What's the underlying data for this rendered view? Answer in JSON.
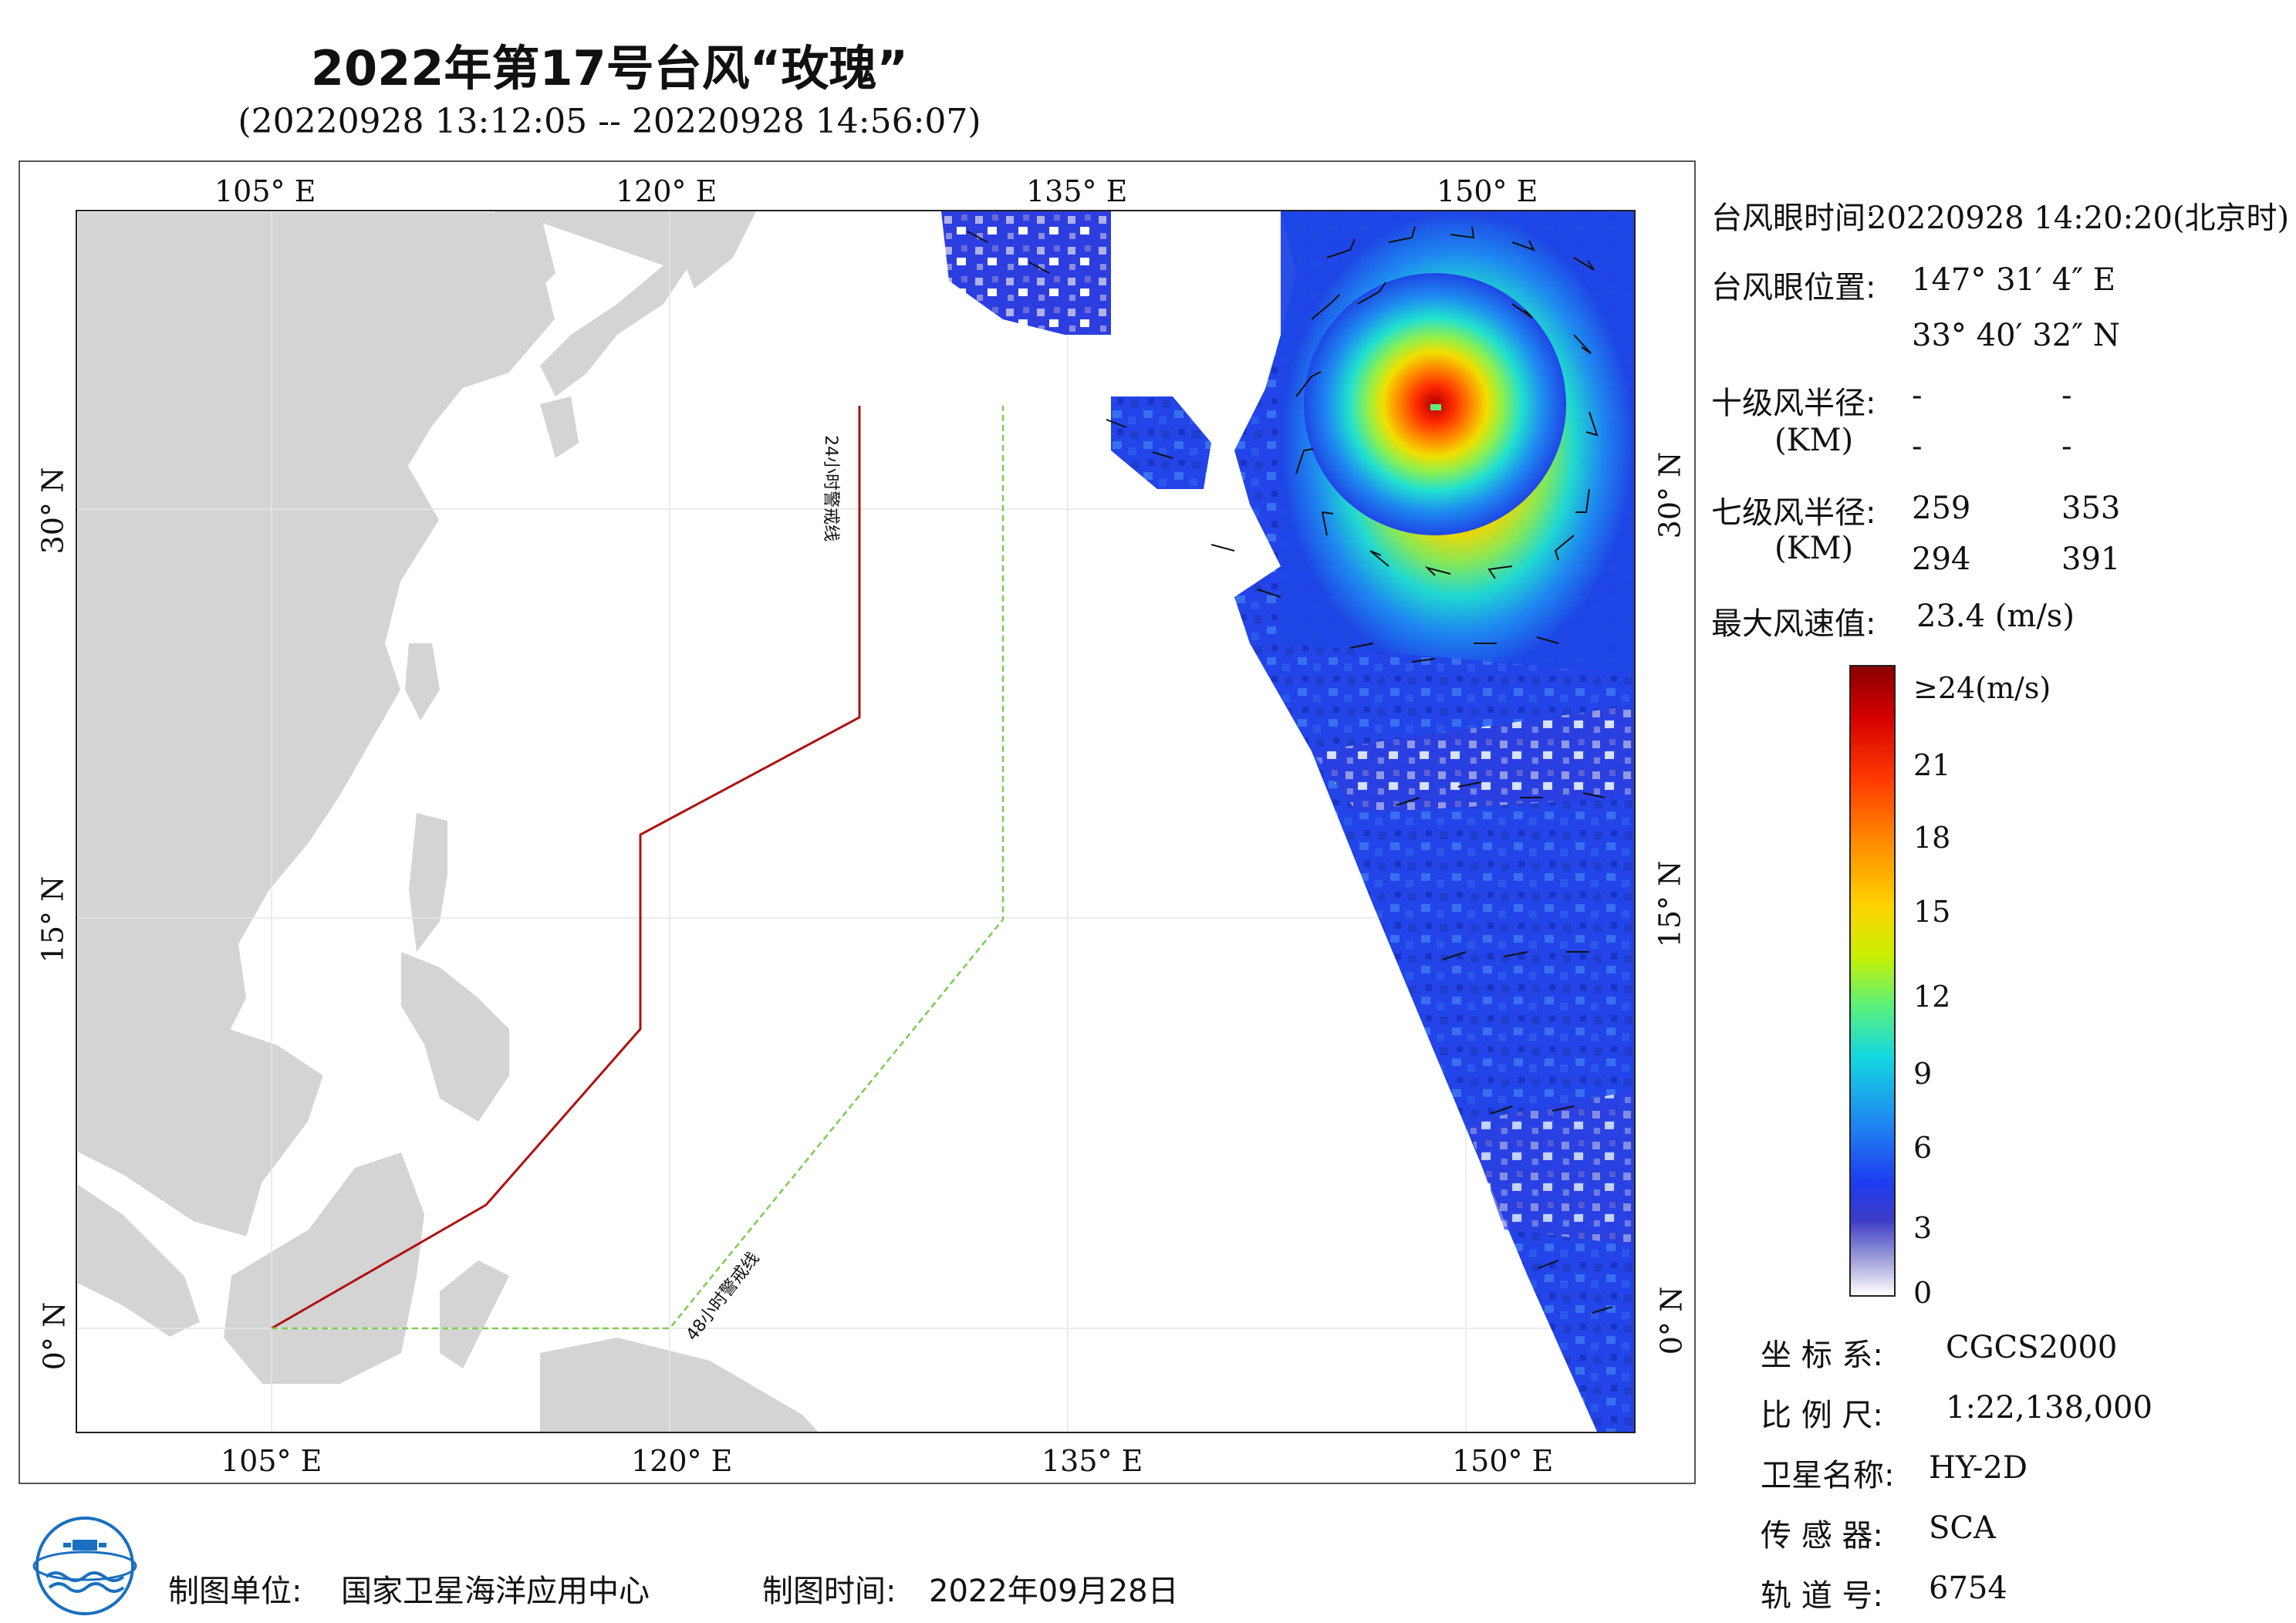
{
  "title": "2022年第17号台风“玫瑰”",
  "subtitle": "(20220928 13:12:05 -- 20220928 14:56:07)",
  "axes": {
    "lon_top": [
      "105° E",
      "120° E",
      "135° E",
      "150° E"
    ],
    "lon_bottom": [
      "105° E",
      "120° E",
      "135° E",
      "150° E"
    ],
    "lat_left": [
      "30° N",
      "15° N",
      "0° N"
    ],
    "lat_right": [
      "30° N",
      "15° N",
      "0° N"
    ]
  },
  "map_labels": {
    "warning_24h": "24小时警戒线",
    "warning_48h": "48小时警戒线"
  },
  "info": {
    "eye_time_label": "台风眼时间:",
    "eye_time_value": "20220928 14:20:20(北京时)",
    "eye_pos_label": "台风眼位置:",
    "eye_lon": "147° 31′ 4″ E",
    "eye_lat": "33° 40′ 32″ N",
    "r10_label": "十级风半径:",
    "r10_unit": "(KM)",
    "r10_values": [
      "-",
      "-",
      "-",
      "-"
    ],
    "r7_label": "七级风半径:",
    "r7_unit": "(KM)",
    "r7_values": [
      "259",
      "353",
      "294",
      "391"
    ],
    "max_wind_label": "最大风速值:",
    "max_wind_value": "23.4 (m/s)"
  },
  "colorbar": {
    "labels": [
      "≥24(m/s)",
      "21",
      "18",
      "15",
      "12",
      "9",
      "6",
      "3",
      "0"
    ],
    "colors": [
      "#8b0000",
      "#ff3a00",
      "#ffd200",
      "#5cf07a",
      "#14d8e0",
      "#1f8cf0",
      "#1e3cf0",
      "#ffffff"
    ]
  },
  "meta": {
    "crs_label": "坐 标 系:",
    "crs_value": "CGCS2000",
    "scale_label": "比 例 尺:",
    "scale_value": "1:22,138,000",
    "sat_label": "卫星名称:",
    "sat_value": "HY-2D",
    "sensor_label": "传 感 器:",
    "sensor_value": "SCA",
    "orbit_label": "轨 道 号:",
    "orbit_value": "6754"
  },
  "footer": {
    "producer_label": "制图单位:",
    "producer_value": "国家卫星海洋应用中心",
    "date_label": "制图时间:",
    "date_value": "2022年09月28日"
  }
}
